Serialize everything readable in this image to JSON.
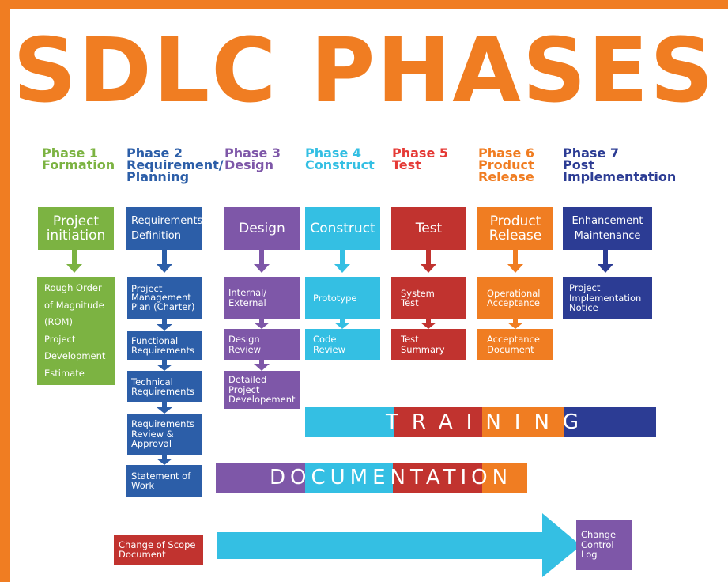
{
  "title": "SDLC PHASES",
  "colors": {
    "orange": "#f07d22",
    "green": "#7cb342",
    "blue": "#2c5ea8",
    "purple": "#7e57a8",
    "cyan": "#34bfe3",
    "red": "#c1332f",
    "navy": "#2c3c94"
  },
  "phases": [
    {
      "heading": "Phase 1\nFormation",
      "color": "#7cb342"
    },
    {
      "heading": "Phase 2\nRequirement/\nPlanning",
      "color": "#2c5ea8"
    },
    {
      "heading": "Phase 3\nDesign",
      "color": "#7e57a8"
    },
    {
      "heading": "Phase 4\nConstruct",
      "color": "#34bfe3"
    },
    {
      "heading": "Phase 5\nTest",
      "color": "#e53935"
    },
    {
      "heading": "Phase 6\nProduct\nRelease",
      "color": "#f07d22"
    },
    {
      "heading": "Phase 7\nPost\nImplementation",
      "color": "#2c3c94"
    }
  ],
  "boxes": {
    "project_initiation": "Project\ninitiation",
    "rom": "Rough Order\nof Magnitude\n(ROM)\nProject\nDevelopment\nEstimate",
    "requirements_definition": "Requirements\nDefinition",
    "project_management_plan": "Project\nManagement\nPlan (Charter)",
    "functional_requirements": "Functional\nRequirements",
    "technical_requirements": "Technical\nRequirements",
    "requirements_review": "Requirements\nReview &\nApproval",
    "statement_of_work": "Statement of\nWork",
    "design": "Design",
    "internal_external": "Internal/\nExternal",
    "design_review": "Design\nReview",
    "detailed_project_development": "Detailed\nProject\nDevelopement",
    "construct": "Construct",
    "prototype": "Prototype",
    "code_review": "Code\nReview",
    "test": "Test",
    "system_test": "System\nTest",
    "test_summary": "Test\nSummary",
    "product_release": "Product\nRelease",
    "operational_acceptance": "Operational\nAcceptance",
    "acceptance_document": "Acceptance\nDocument",
    "enhancement_maintenance": "Enhancement\nMaintenance",
    "project_implementation_notice": "Project\nImplementation\nNotice",
    "change_of_scope": "Change of Scope\nDocument",
    "change_control_log": "Change\nControl\nLog"
  },
  "bands": {
    "training": "TRAINING",
    "documentation": "DOCUMENTATION"
  }
}
